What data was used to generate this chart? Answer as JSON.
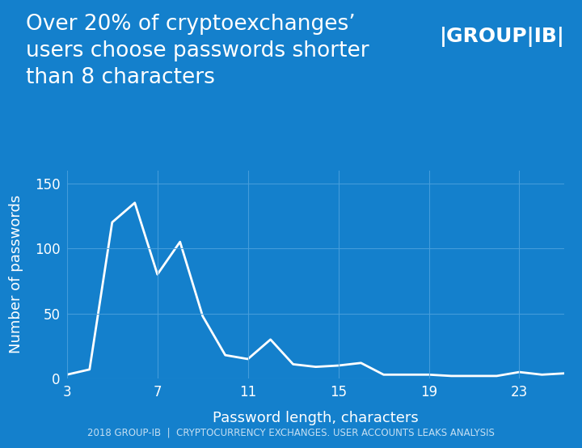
{
  "title_line1": "Over 20% of cryptoexchanges’",
  "title_line2": "users choose passwords shorter",
  "title_line3": "than 8 characters",
  "xlabel": "Password length, characters",
  "ylabel": "Number of passwords",
  "footer": "2018 GROUP-IB  |  CRYPTOCURRENCY EXCHANGES. USER ACCOUNTS LEAKS ANALYSIS",
  "bg_color": "#1480cc",
  "line_color": "#ffffff",
  "grid_color": "#4aa0dd",
  "text_color": "#ffffff",
  "x_data": [
    3,
    4,
    5,
    6,
    7,
    8,
    9,
    10,
    11,
    12,
    13,
    14,
    15,
    16,
    17,
    18,
    19,
    20,
    21,
    22,
    23,
    24,
    25
  ],
  "y_data": [
    3,
    7,
    120,
    135,
    80,
    105,
    48,
    18,
    15,
    30,
    11,
    9,
    10,
    12,
    3,
    3,
    3,
    2,
    2,
    2,
    5,
    3,
    4
  ],
  "xlim": [
    3,
    25
  ],
  "ylim": [
    0,
    160
  ],
  "yticks": [
    0,
    50,
    100,
    150
  ],
  "xticks": [
    3,
    7,
    11,
    15,
    19,
    23
  ],
  "title_fontsize": 19,
  "axis_label_fontsize": 13,
  "tick_fontsize": 12,
  "footer_fontsize": 8.5,
  "line_width": 2.0,
  "logo_text": "|GROUP|IB|",
  "logo_fontsize": 18
}
